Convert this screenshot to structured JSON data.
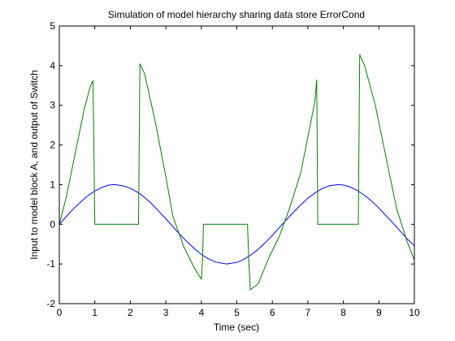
{
  "chart_data": {
    "type": "line",
    "title": "Simulation of model hierarchy sharing data store ErrorCond",
    "xlabel": "Time (sec)",
    "ylabel": "Input to model block A, and output of Switch",
    "xlim": [
      0,
      10
    ],
    "ylim": [
      -2,
      5
    ],
    "xticks": [
      0,
      1,
      2,
      3,
      4,
      5,
      6,
      7,
      8,
      9,
      10
    ],
    "yticks": [
      -2,
      -1,
      0,
      1,
      2,
      3,
      4,
      5
    ],
    "grid": false,
    "legend": "none",
    "series": [
      {
        "color": "#0000ff",
        "x": [
          0,
          0.2,
          0.4,
          0.6,
          0.8,
          1.0,
          1.2,
          1.4,
          1.57,
          1.8,
          2.0,
          2.2,
          2.4,
          2.6,
          2.8,
          3.0,
          3.2,
          3.4,
          3.6,
          3.8,
          4.0,
          4.2,
          4.4,
          4.71,
          5.0,
          5.2,
          5.4,
          5.6,
          5.8,
          6.0,
          6.2,
          6.4,
          6.6,
          6.8,
          7.0,
          7.2,
          7.4,
          7.6,
          7.85,
          8.0,
          8.2,
          8.4,
          8.6,
          8.8,
          9.0,
          9.2,
          9.4,
          9.6,
          9.8,
          10.0
        ],
        "y": [
          0,
          0.2,
          0.39,
          0.56,
          0.72,
          0.84,
          0.93,
          0.99,
          1.0,
          0.97,
          0.91,
          0.81,
          0.68,
          0.52,
          0.33,
          0.14,
          -0.06,
          -0.26,
          -0.44,
          -0.61,
          -0.76,
          -0.87,
          -0.95,
          -1.0,
          -0.96,
          -0.88,
          -0.77,
          -0.63,
          -0.46,
          -0.28,
          -0.08,
          0.12,
          0.31,
          0.49,
          0.66,
          0.79,
          0.9,
          0.97,
          1.0,
          0.99,
          0.94,
          0.85,
          0.73,
          0.58,
          0.41,
          0.22,
          0.03,
          -0.17,
          -0.37,
          -0.54
        ]
      },
      {
        "color": "#008000",
        "x": [
          0,
          0.2,
          0.45,
          0.7,
          0.88,
          0.95,
          1.0,
          2.23,
          2.27,
          2.4,
          2.7,
          3.0,
          3.2,
          3.5,
          3.8,
          4.0,
          4.03,
          4.06,
          5.3,
          5.34,
          5.38,
          5.6,
          5.9,
          6.2,
          6.5,
          6.8,
          7.0,
          7.2,
          7.25,
          7.28,
          8.42,
          8.46,
          8.6,
          8.9,
          9.2,
          9.5,
          9.8,
          10.0
        ],
        "y": [
          0,
          0.7,
          1.8,
          2.9,
          3.5,
          3.62,
          0,
          0,
          4.05,
          3.8,
          2.6,
          1.2,
          0.2,
          -0.55,
          -1.1,
          -1.38,
          -1.0,
          0,
          0,
          -1.0,
          -1.65,
          -1.5,
          -0.85,
          -0.3,
          0.45,
          1.3,
          2.2,
          3.1,
          3.65,
          0,
          0,
          4.28,
          4.0,
          3.0,
          1.7,
          0.4,
          -0.45,
          -0.9
        ]
      }
    ]
  }
}
